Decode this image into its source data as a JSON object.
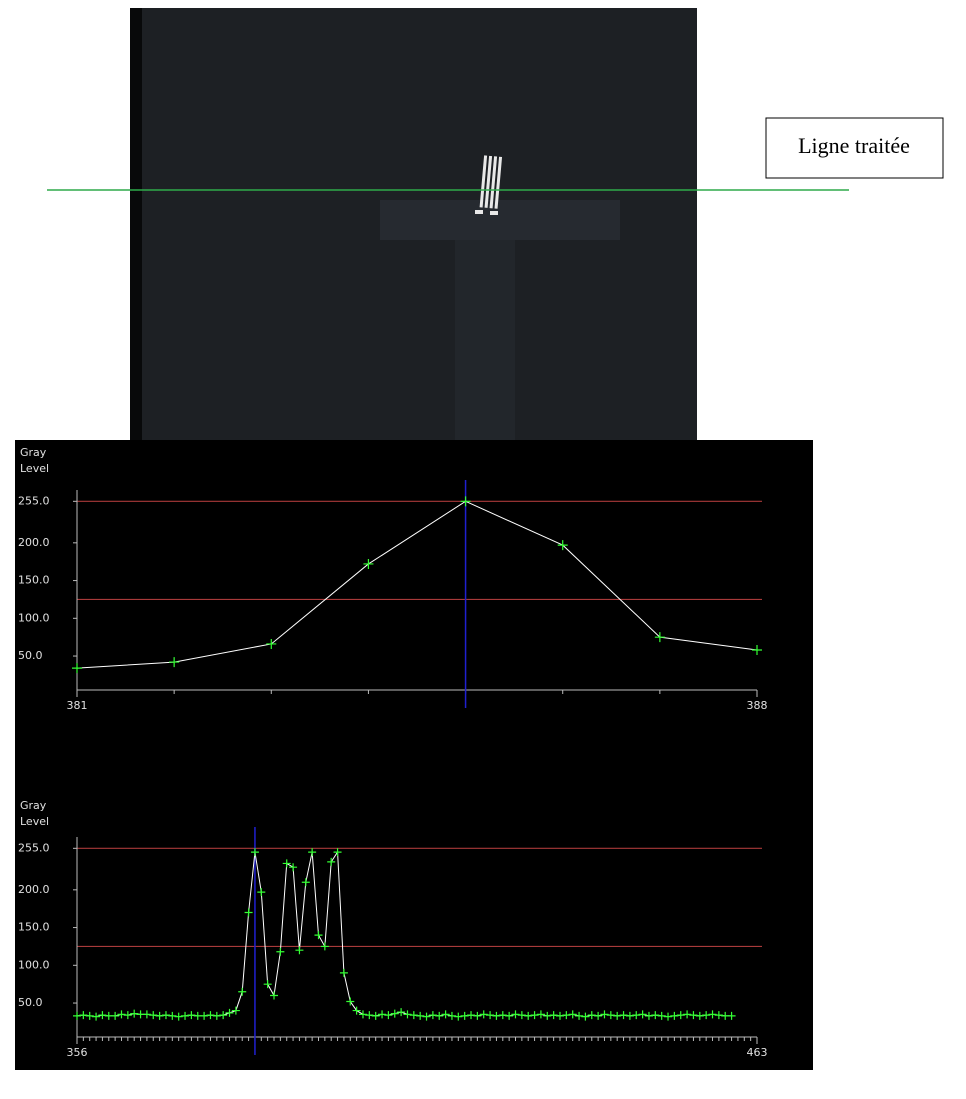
{
  "image": {
    "annotation": "Ligne traitée"
  },
  "chart_data": [
    {
      "type": "line",
      "y_label": [
        "Gray",
        "Level"
      ],
      "x": [
        381,
        382,
        383,
        384,
        385,
        386,
        387,
        388
      ],
      "series": [
        {
          "color": "#ffffff",
          "marker_color": "#33ff33",
          "values": [
            34,
            42,
            66,
            172,
            255,
            197,
            75,
            58
          ]
        }
      ],
      "xlim": [
        381,
        388
      ],
      "ylim": [
        5,
        270
      ],
      "xticks": [
        381,
        388
      ],
      "minor_xtick_step": 1,
      "yticks": [
        {
          "value": 50,
          "label": "50.0"
        },
        {
          "value": 100,
          "label": "100.0"
        },
        {
          "value": 150,
          "label": "150.0"
        },
        {
          "value": 200,
          "label": "200.0"
        },
        {
          "value": 255,
          "label": "255.0"
        }
      ],
      "hlines": [
        255,
        125
      ],
      "hline_color": "#a83a3a",
      "cursor_x": 385,
      "cursor_color": "#2020d0"
    },
    {
      "type": "line",
      "y_label": [
        "Gray",
        "Level"
      ],
      "x": [
        356,
        357,
        358,
        359,
        360,
        361,
        362,
        363,
        364,
        365,
        366,
        367,
        368,
        369,
        370,
        371,
        372,
        373,
        374,
        375,
        376,
        377,
        378,
        379,
        380,
        381,
        382,
        383,
        384,
        385,
        386,
        387,
        388,
        389,
        390,
        391,
        392,
        393,
        394,
        395,
        396,
        397,
        398,
        399,
        400,
        401,
        402,
        403,
        404,
        405,
        406,
        407,
        408,
        409,
        410,
        411,
        412,
        413,
        414,
        415,
        416,
        417,
        418,
        419,
        420,
        421,
        422,
        423,
        424,
        425,
        426,
        427,
        428,
        429,
        430,
        431,
        432,
        433,
        434,
        435,
        436,
        437,
        438,
        439,
        440,
        441,
        442,
        443,
        444,
        445,
        446,
        447,
        448,
        449,
        450,
        451,
        452,
        453,
        454,
        455,
        456,
        457,
        458,
        459
      ],
      "series": [
        {
          "color": "#ffffff",
          "marker_color": "#33ff33",
          "values": [
            33,
            34,
            33,
            32,
            34,
            33,
            33,
            35,
            34,
            36,
            35,
            35,
            34,
            33,
            34,
            33,
            32,
            33,
            34,
            33,
            33,
            34,
            33,
            34,
            37,
            40,
            65,
            170,
            250,
            197,
            75,
            60,
            118,
            235,
            230,
            120,
            210,
            250,
            140,
            125,
            237,
            250,
            90,
            52,
            40,
            35,
            34,
            33,
            35,
            34,
            36,
            38,
            35,
            34,
            33,
            32,
            34,
            33,
            35,
            33,
            32,
            33,
            34,
            33,
            35,
            34,
            33,
            34,
            33,
            35,
            34,
            33,
            34,
            35,
            33,
            34,
            33,
            34,
            35,
            33,
            32,
            34,
            33,
            35,
            34,
            33,
            34,
            33,
            34,
            35,
            33,
            34,
            33,
            32,
            33,
            34,
            35,
            34,
            33,
            34,
            35,
            34,
            33,
            33
          ]
        }
      ],
      "xlim": [
        356,
        463
      ],
      "ylim": [
        5,
        270
      ],
      "xticks": [
        356,
        463
      ],
      "minor_xtick_step": 1,
      "yticks": [
        {
          "value": 50,
          "label": "50.0"
        },
        {
          "value": 100,
          "label": "100.0"
        },
        {
          "value": 150,
          "label": "150.0"
        },
        {
          "value": 200,
          "label": "200.0"
        },
        {
          "value": 255,
          "label": "255.0"
        }
      ],
      "hlines": [
        255,
        125
      ],
      "hline_color": "#a83a3a",
      "cursor_x": 384,
      "cursor_color": "#2020d0"
    }
  ]
}
